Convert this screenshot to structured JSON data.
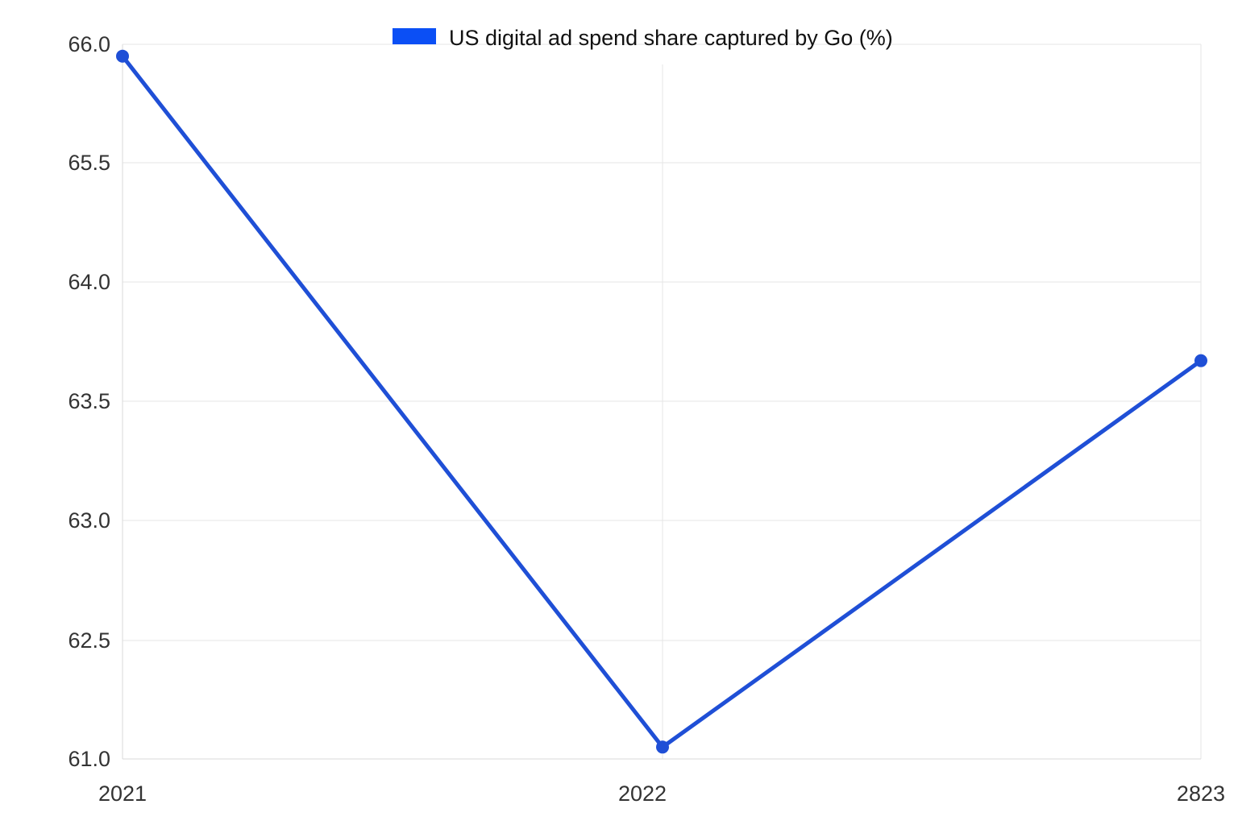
{
  "chart_data": {
    "type": "line",
    "x": [
      "2021",
      "2022",
      "2823"
    ],
    "series": [
      {
        "name": "US digital ad spend share captured by Go (%)",
        "values": [
          65.95,
          61.15,
          63.67
        ],
        "color": "#1f4fd6"
      }
    ],
    "legend": {
      "swatch_color": "#0b4ff5",
      "position": "top-center"
    },
    "y_ticks": [
      {
        "value": 61.0,
        "label": "61.0"
      },
      {
        "value": 62.5,
        "label": "62.5"
      },
      {
        "value": 63.0,
        "label": "63.0"
      },
      {
        "value": 63.5,
        "label": "63.5"
      },
      {
        "value": 64.0,
        "label": "64.0"
      },
      {
        "value": 65.5,
        "label": "65.5"
      },
      {
        "value": 66.0,
        "label": "66.0"
      }
    ],
    "x_ticks": [
      "2021",
      "2022",
      "2823"
    ],
    "grid": true,
    "title": "",
    "xlabel": "",
    "ylabel": ""
  }
}
